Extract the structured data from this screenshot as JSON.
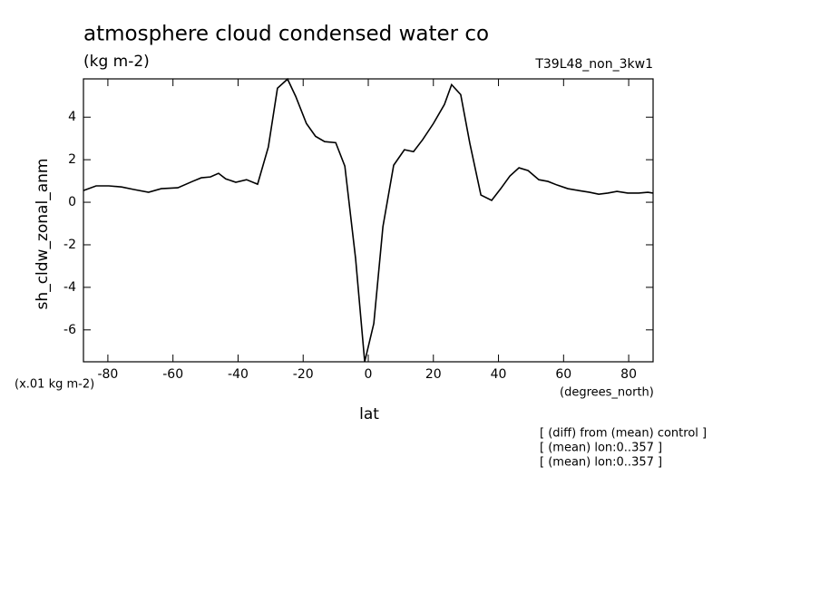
{
  "chart_data": {
    "type": "line",
    "title": "atmosphere cloud condensed water co",
    "subtitle": "(kg m-2)",
    "run_label": "T39L48_non_3kw1",
    "y_label": "sh_cldw_zonal_anm",
    "y_units": "(x.01 kg m-2)",
    "x_units": "(degrees_north)",
    "x_label": "lat",
    "notes": [
      "[ (diff) from (mean) control ]",
      "[ (mean) lon:0..357 ]",
      "[ (mean) lon:0..357 ]"
    ],
    "color": "#000000",
    "xlim": [
      -87.5,
      87.5
    ],
    "ylim": [
      -7.5,
      5.8
    ],
    "xticks": [
      -80,
      -60,
      -40,
      -20,
      0,
      20,
      40,
      60,
      80
    ],
    "yticks": [
      -6,
      -4,
      -2,
      0,
      2,
      4
    ],
    "x": [
      -87.5,
      -83.6,
      -79.7,
      -75.8,
      -72,
      -67.5,
      -63.6,
      -58.5,
      -54,
      -51.3,
      -48.5,
      -46,
      -43.8,
      -40.7,
      -37.4,
      -34,
      -30.7,
      -27.9,
      -24.8,
      -22.3,
      -19,
      -16.2,
      -13.4,
      -10,
      -7.2,
      -3.9,
      -1.1,
      1.7,
      4.5,
      7.8,
      11.1,
      13.9,
      16.7,
      20,
      23.4,
      25.6,
      28.4,
      31.2,
      34.6,
      37.9,
      40.7,
      43.5,
      46.3,
      49.1,
      52.4,
      55.2,
      58,
      61.3,
      64.7,
      68,
      70.8,
      73.6,
      76.4,
      79.7,
      83.1,
      85.9,
      87.5
    ],
    "values": [
      0.55,
      0.77,
      0.77,
      0.72,
      0.6,
      0.47,
      0.64,
      0.68,
      0.98,
      1.15,
      1.19,
      1.36,
      1.1,
      0.94,
      1.06,
      0.85,
      2.6,
      5.36,
      5.79,
      4.98,
      3.7,
      3.1,
      2.85,
      2.8,
      1.7,
      -2.64,
      -7.5,
      -5.7,
      -1.15,
      1.74,
      2.47,
      2.38,
      2.94,
      3.7,
      4.6,
      5.53,
      5.06,
      2.77,
      0.34,
      0.09,
      0.64,
      1.23,
      1.62,
      1.49,
      1.06,
      0.98,
      0.81,
      0.64,
      0.55,
      0.47,
      0.38,
      0.43,
      0.51,
      0.43,
      0.43,
      0.47,
      0.43
    ]
  }
}
